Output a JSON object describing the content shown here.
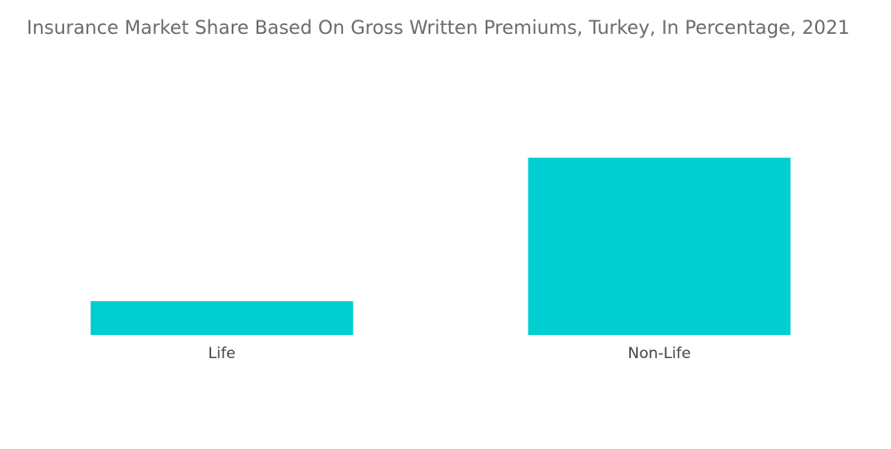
{
  "chart_data": {
    "type": "bar",
    "title": "Insurance Market Share Based On Gross Written Premiums, Turkey, In Percentage, 2021",
    "categories": [
      "Life",
      "Non-Life"
    ],
    "values": [
      16,
      84
    ],
    "color": "#00ced1"
  }
}
